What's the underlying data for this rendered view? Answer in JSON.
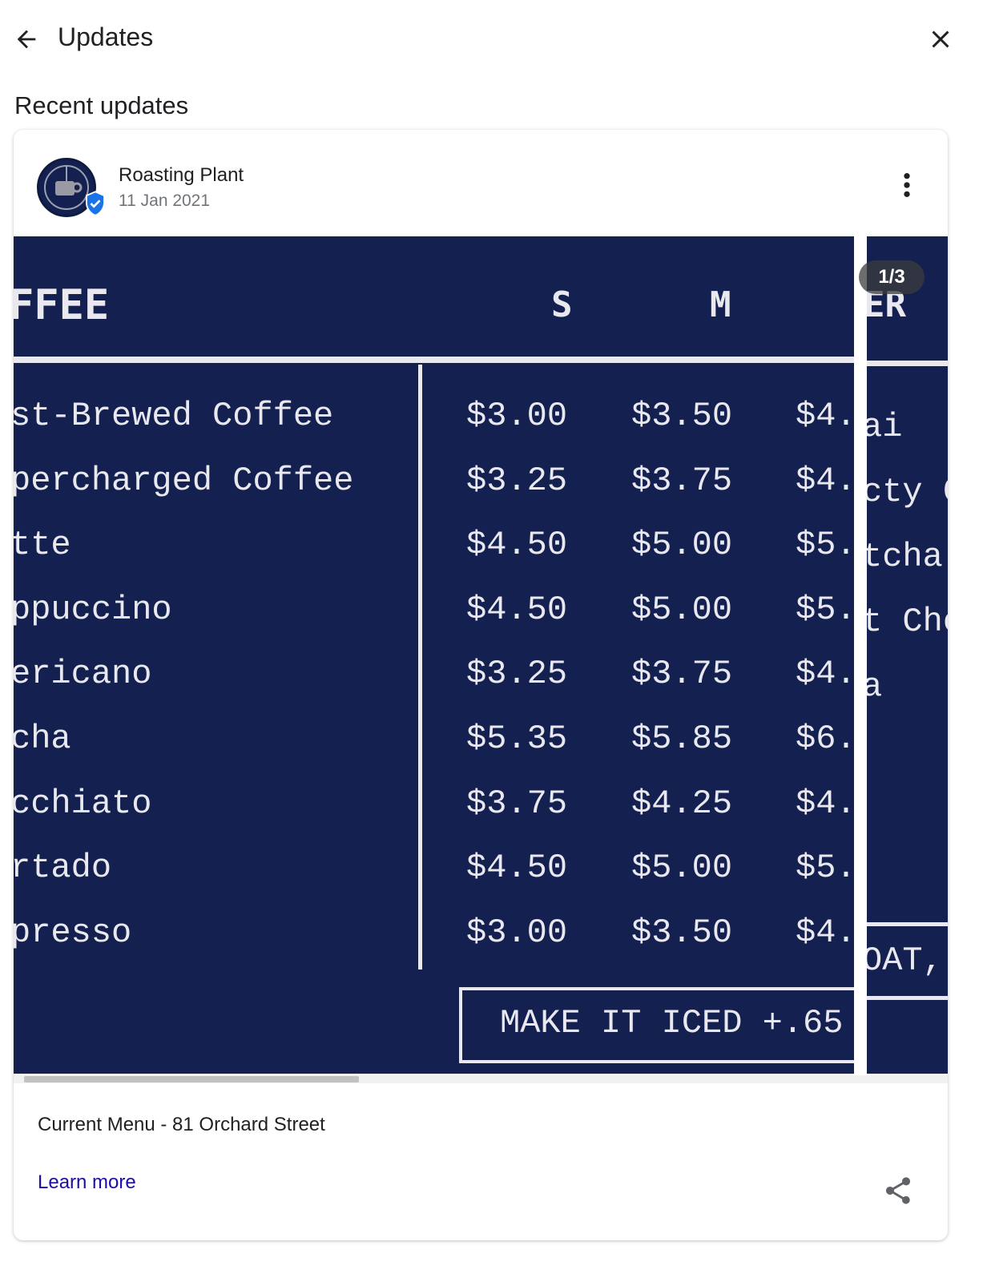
{
  "header": {
    "title": "Updates",
    "back_icon": "arrow-left-icon",
    "close_icon": "close-icon"
  },
  "section_title": "Recent updates",
  "post": {
    "author": "Roasting Plant",
    "date": "11 Jan 2021",
    "verified": true,
    "more_icon": "more-vert-icon",
    "image_counter": "1/3",
    "menu": {
      "heading": "FFEE",
      "sizes": [
        "S",
        "M"
      ],
      "items": [
        {
          "name": "st-Brewed Coffee",
          "prices": [
            "$3.00",
            "$3.50",
            "$4."
          ]
        },
        {
          "name": "percharged Coffee",
          "prices": [
            "$3.25",
            "$3.75",
            "$4."
          ]
        },
        {
          "name": "tte",
          "prices": [
            "$4.50",
            "$5.00",
            "$5."
          ]
        },
        {
          "name": "ppuccino",
          "prices": [
            "$4.50",
            "$5.00",
            "$5."
          ]
        },
        {
          "name": "ericano",
          "prices": [
            "$3.25",
            "$3.75",
            "$4."
          ]
        },
        {
          "name": "cha",
          "prices": [
            "$5.35",
            "$5.85",
            "$6."
          ]
        },
        {
          "name": "cchiato",
          "prices": [
            "$3.75",
            "$4.25",
            "$4."
          ]
        },
        {
          "name": "rtado",
          "prices": [
            "$4.50",
            "$5.00",
            "$5."
          ]
        },
        {
          "name": "presso",
          "prices": [
            "$3.00",
            "$3.50",
            "$4."
          ]
        }
      ],
      "iced_note": "MAKE IT ICED +.65"
    },
    "menu2": {
      "heading": "ER",
      "items": [
        "ai",
        "cty C",
        "tcha",
        "t Cho",
        "a"
      ],
      "footer": "OAT,"
    },
    "caption": "Current Menu - 81 Orchard Street",
    "learn_more": "Learn more",
    "share_icon": "share-icon"
  }
}
